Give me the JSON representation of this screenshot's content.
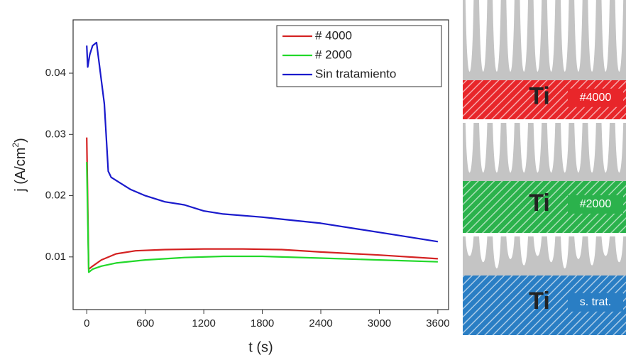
{
  "chart_data": {
    "type": "line",
    "xlabel": "t (s)",
    "ylabel_parts": [
      "j (A/cm",
      "2",
      ")"
    ],
    "xlim": [
      -140,
      3710
    ],
    "xticks": [
      0,
      600,
      1200,
      1800,
      2400,
      3000,
      3600
    ],
    "ylim": [
      0.0014,
      0.0487
    ],
    "yticks": [
      0.01,
      0.02,
      0.03,
      0.04
    ],
    "legend": "top-right",
    "series": [
      {
        "name": "# 4000",
        "color": "#d42222",
        "x": [
          0,
          20,
          60,
          150,
          300,
          500,
          800,
          1200,
          1600,
          2000,
          2400,
          3000,
          3600
        ],
        "values": [
          0.0295,
          0.008,
          0.0085,
          0.0095,
          0.0105,
          0.011,
          0.0112,
          0.0113,
          0.0113,
          0.0112,
          0.0108,
          0.0103,
          0.0097
        ]
      },
      {
        "name": "# 2000",
        "color": "#22d82a",
        "x": [
          0,
          20,
          60,
          150,
          300,
          600,
          1000,
          1400,
          1800,
          2400,
          3000,
          3600
        ],
        "values": [
          0.0255,
          0.0075,
          0.008,
          0.0085,
          0.009,
          0.0095,
          0.0099,
          0.0101,
          0.0101,
          0.0098,
          0.0095,
          0.0092
        ]
      },
      {
        "name": "Sin tratamiento",
        "color": "#1a1acc",
        "x": [
          0,
          10,
          30,
          60,
          100,
          180,
          220,
          250,
          350,
          450,
          600,
          800,
          1000,
          1200,
          1400,
          1800,
          2100,
          2400,
          2800,
          3200,
          3600
        ],
        "values": [
          0.0445,
          0.041,
          0.043,
          0.0445,
          0.045,
          0.035,
          0.024,
          0.023,
          0.022,
          0.021,
          0.02,
          0.019,
          0.0185,
          0.0175,
          0.017,
          0.0165,
          0.016,
          0.0155,
          0.0145,
          0.0135,
          0.0125
        ]
      }
    ]
  },
  "diagram": {
    "panels": [
      {
        "material": "Ti",
        "label": "#4000",
        "color": "#e8262a"
      },
      {
        "material": "Ti",
        "label": "#2000",
        "color": "#2bb24c"
      },
      {
        "material": "Ti",
        "label": "s. trat.",
        "color": "#2a7ec4"
      }
    ]
  }
}
